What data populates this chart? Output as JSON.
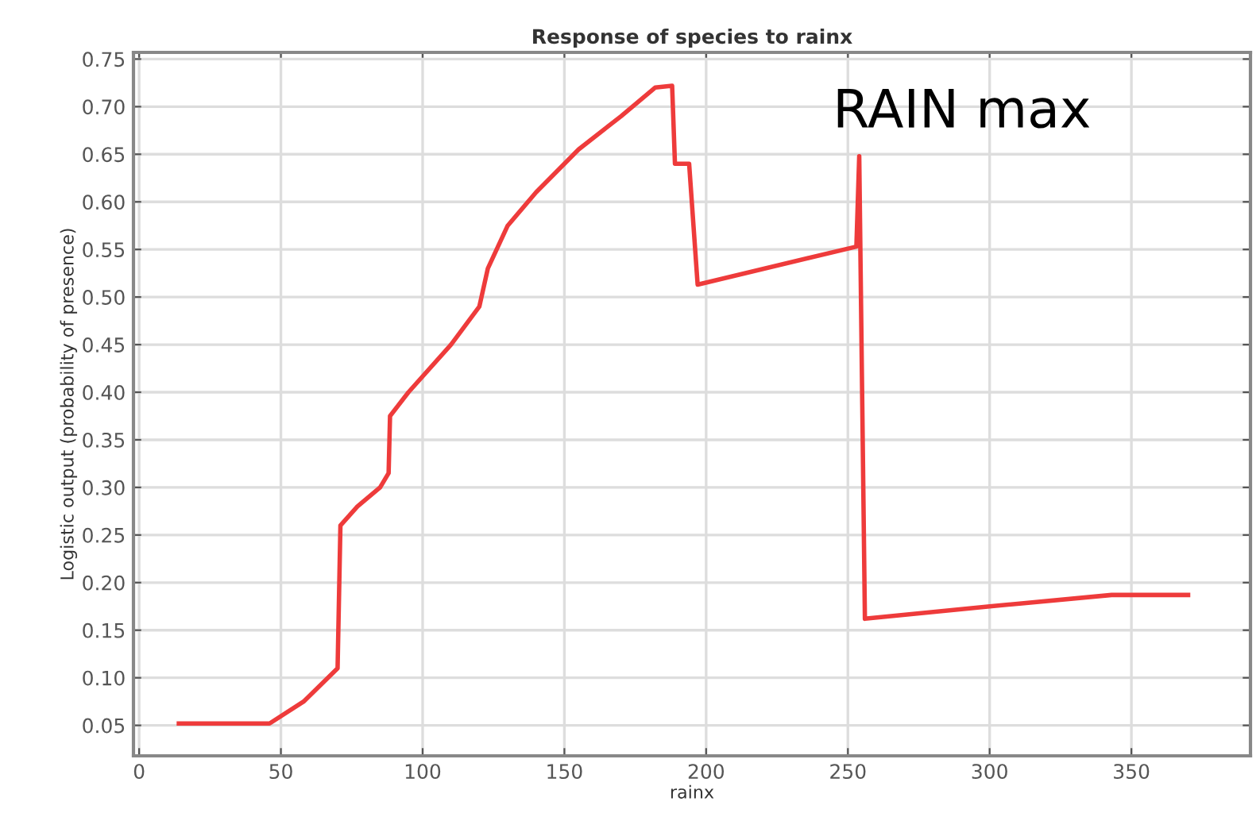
{
  "chart_data": {
    "type": "line",
    "title": "Response of species to rainx",
    "xlabel": "rainx",
    "ylabel": "Logistic output (probability of presence)",
    "x": [
      14,
      46,
      58,
      70,
      71,
      77,
      85,
      88,
      88.5,
      95,
      110,
      120,
      123,
      130,
      140,
      155,
      170,
      182,
      188,
      189,
      194,
      197,
      253,
      254,
      256,
      300,
      343,
      370
    ],
    "series": [
      {
        "color": "#ee3b3b",
        "values": [
          0.052,
          0.052,
          0.075,
          0.11,
          0.26,
          0.28,
          0.3,
          0.315,
          0.375,
          0.4,
          0.45,
          0.49,
          0.53,
          0.575,
          0.61,
          0.655,
          0.69,
          0.72,
          0.722,
          0.64,
          0.64,
          0.513,
          0.553,
          0.648,
          0.162,
          0.175,
          0.187,
          0.187
        ]
      }
    ],
    "xlim": [
      -2,
      392
    ],
    "xticks": [
      0,
      50,
      100,
      150,
      200,
      250,
      300,
      350
    ],
    "ylim": [
      0.018,
      0.757
    ],
    "yticks": [
      {
        "value": 0.05,
        "label": "0.05"
      },
      {
        "value": 0.1,
        "label": "0.10"
      },
      {
        "value": 0.15,
        "label": "0.15"
      },
      {
        "value": 0.2,
        "label": "0.20"
      },
      {
        "value": 0.25,
        "label": "0.25"
      },
      {
        "value": 0.3,
        "label": "0.30"
      },
      {
        "value": 0.35,
        "label": "0.35"
      },
      {
        "value": 0.4,
        "label": "0.40"
      },
      {
        "value": 0.45,
        "label": "0.45"
      },
      {
        "value": 0.5,
        "label": "0.50"
      },
      {
        "value": 0.55,
        "label": "0.55"
      },
      {
        "value": 0.6,
        "label": "0.60"
      },
      {
        "value": 0.65,
        "label": "0.65"
      },
      {
        "value": 0.7,
        "label": "0.70"
      },
      {
        "value": 0.75,
        "label": "0.75"
      }
    ],
    "grid": true,
    "annotations": [
      {
        "text": "RAIN max",
        "x": 254,
        "y": 0.648
      }
    ]
  }
}
